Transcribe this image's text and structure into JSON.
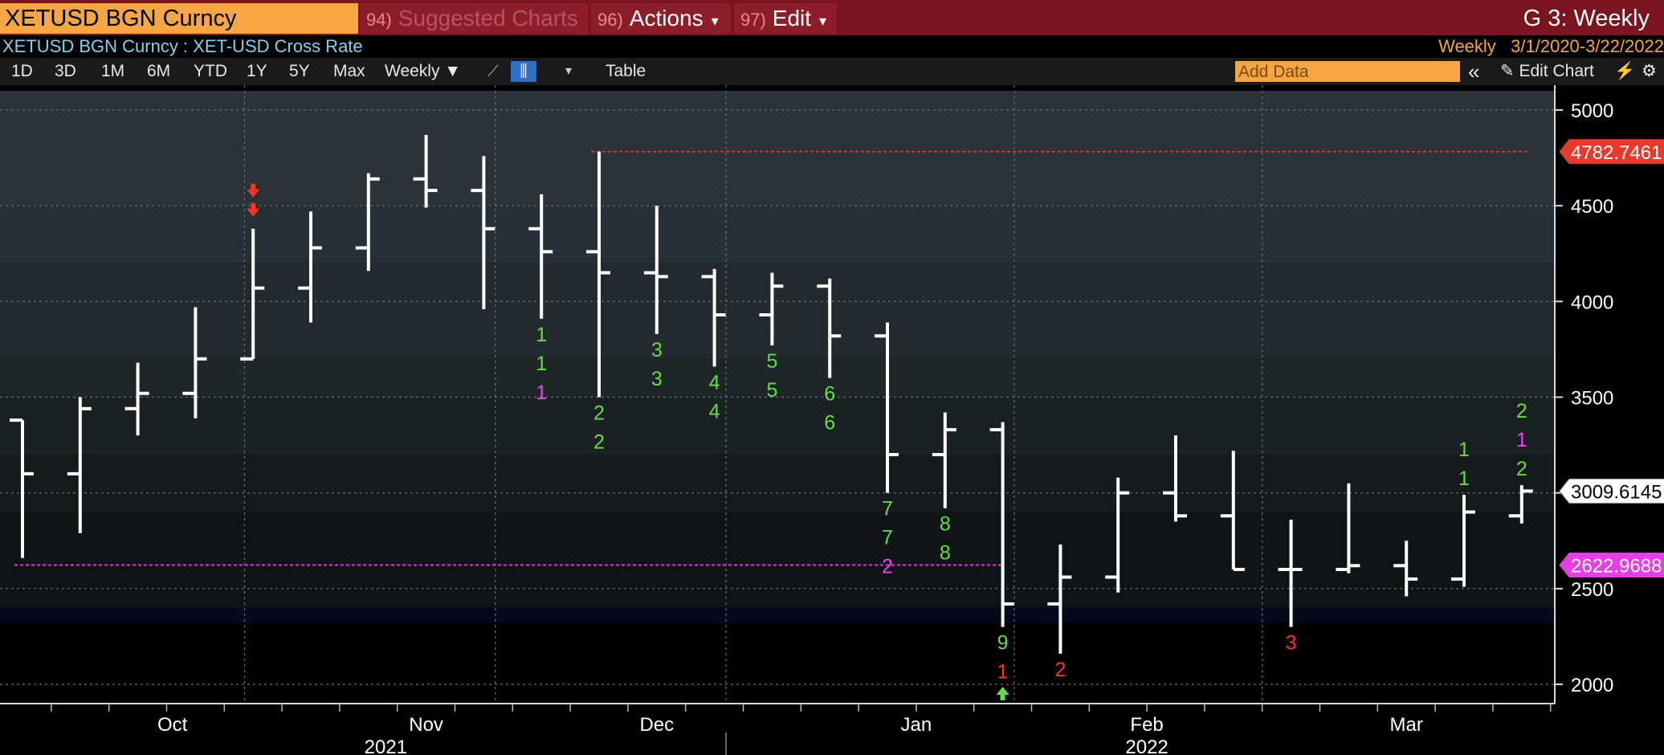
{
  "header": {
    "ticker": "XETUSD BGN Curncy",
    "menus": [
      {
        "num": "94)",
        "label": "Suggested Charts"
      },
      {
        "num": "96)",
        "label": "Actions",
        "caret": "▾"
      },
      {
        "num": "97)",
        "label": "Edit",
        "caret": "▾"
      }
    ],
    "window_title": "G 3: Weekly",
    "subtitle": "XETUSD BGN Curncy : XET-USD Cross Rate",
    "period_label": "Weekly",
    "date_range": "3/1/2020-3/22/2022"
  },
  "toolbar": {
    "ranges": [
      "1D",
      "3D",
      "1M",
      "6M",
      "YTD",
      "1Y",
      "5Y",
      "Max"
    ],
    "frequency": "Weekly ▼",
    "table_label": "Table",
    "add_data_placeholder": "Add Data",
    "double_chevron": "«",
    "edit_chart_label": "Edit Chart",
    "pencil_icon": "✎",
    "line_icon": "⟋",
    "bar_icon": "⫼",
    "dropdown_caret": "▾",
    "wand_icon": "⚡",
    "gear_icon": "⚙"
  },
  "colors": {
    "bars": "#ffffff",
    "count_green": "#66dd44",
    "count_red": "#ff3322",
    "count_magenta": "#ee44ee",
    "high_line": "#dd3333",
    "low_line": "#dd33dd",
    "accent_orange": "#f5a643",
    "menu_red": "#7a1520"
  },
  "chart_data": {
    "type": "ohlc",
    "frequency": "Weekly",
    "ylim": [
      1900,
      5100
    ],
    "y_ticks": [
      2000,
      2500,
      3000,
      3500,
      4000,
      4500,
      5000
    ],
    "month_labels": [
      {
        "label": "Oct",
        "bar": 2.6
      },
      {
        "label": "Nov",
        "bar": 7.0
      },
      {
        "label": "Dec",
        "bar": 11.0
      },
      {
        "label": "Jan",
        "bar": 15.5
      },
      {
        "label": "Feb",
        "bar": 19.5
      },
      {
        "label": "Mar",
        "bar": 24.0
      }
    ],
    "year_labels": [
      {
        "label": "2021",
        "bar": 6.3
      },
      {
        "label": "2022",
        "bar": 19.5
      }
    ],
    "bars": [
      {
        "o": 3380,
        "h": 3380,
        "l": 2660,
        "c": 3100
      },
      {
        "o": 3100,
        "h": 3500,
        "l": 2790,
        "c": 3440
      },
      {
        "o": 3440,
        "h": 3680,
        "l": 3300,
        "c": 3520
      },
      {
        "o": 3520,
        "h": 3970,
        "l": 3390,
        "c": 3700
      },
      {
        "o": 3700,
        "h": 4380,
        "l": 3700,
        "c": 4070
      },
      {
        "o": 4070,
        "h": 4470,
        "l": 3890,
        "c": 4280
      },
      {
        "o": 4280,
        "h": 4670,
        "l": 4160,
        "c": 4640
      },
      {
        "o": 4640,
        "h": 4870,
        "l": 4490,
        "c": 4580
      },
      {
        "o": 4580,
        "h": 4760,
        "l": 3960,
        "c": 4380
      },
      {
        "o": 4380,
        "h": 4560,
        "l": 3910,
        "c": 4260
      },
      {
        "o": 4260,
        "h": 4782.7461,
        "l": 3500,
        "c": 4150
      },
      {
        "o": 4150,
        "h": 4500,
        "l": 3830,
        "c": 4130
      },
      {
        "o": 4130,
        "h": 4170,
        "l": 3660,
        "c": 3930
      },
      {
        "o": 3930,
        "h": 4150,
        "l": 3770,
        "c": 4080
      },
      {
        "o": 4080,
        "h": 4120,
        "l": 3600,
        "c": 3820
      },
      {
        "o": 3820,
        "h": 3890,
        "l": 3000,
        "c": 3200
      },
      {
        "o": 3200,
        "h": 3420,
        "l": 2920,
        "c": 3330
      },
      {
        "o": 3330,
        "h": 3370,
        "l": 2300,
        "c": 2420
      },
      {
        "o": 2420,
        "h": 2730,
        "l": 2160,
        "c": 2560
      },
      {
        "o": 2560,
        "h": 3080,
        "l": 2480,
        "c": 3000
      },
      {
        "o": 3000,
        "h": 3300,
        "l": 2850,
        "c": 2880
      },
      {
        "o": 2880,
        "h": 3220,
        "l": 2600,
        "c": 2600
      },
      {
        "o": 2600,
        "h": 2860,
        "l": 2300,
        "c": 2600
      },
      {
        "o": 2600,
        "h": 3050,
        "l": 2580,
        "c": 2620
      },
      {
        "o": 2620,
        "h": 2750,
        "l": 2460,
        "c": 2550
      },
      {
        "o": 2550,
        "h": 2990,
        "l": 2510,
        "c": 2900
      },
      {
        "o": 2880,
        "h": 3040,
        "l": 2840,
        "c": 3009.6145
      }
    ],
    "sequential_counts": [
      {
        "bar": 9,
        "labels": [
          {
            "t": "1",
            "c": "green"
          },
          {
            "t": "1",
            "c": "green"
          },
          {
            "t": "1",
            "c": "magenta"
          }
        ]
      },
      {
        "bar": 10,
        "labels": [
          {
            "t": "2",
            "c": "green"
          },
          {
            "t": "2",
            "c": "green"
          }
        ]
      },
      {
        "bar": 11,
        "labels": [
          {
            "t": "3",
            "c": "green"
          },
          {
            "t": "3",
            "c": "green"
          }
        ]
      },
      {
        "bar": 12,
        "labels": [
          {
            "t": "4",
            "c": "green"
          },
          {
            "t": "4",
            "c": "green"
          }
        ]
      },
      {
        "bar": 13,
        "labels": [
          {
            "t": "5",
            "c": "green"
          },
          {
            "t": "5",
            "c": "green"
          }
        ]
      },
      {
        "bar": 14,
        "labels": [
          {
            "t": "6",
            "c": "green"
          },
          {
            "t": "6",
            "c": "green"
          }
        ]
      },
      {
        "bar": 15,
        "labels": [
          {
            "t": "7",
            "c": "green"
          },
          {
            "t": "7",
            "c": "green"
          },
          {
            "t": "2",
            "c": "magenta"
          }
        ]
      },
      {
        "bar": 16,
        "labels": [
          {
            "t": "8",
            "c": "green"
          },
          {
            "t": "8",
            "c": "green"
          }
        ]
      },
      {
        "bar": 17,
        "labels": [
          {
            "t": "9",
            "c": "green"
          },
          {
            "t": "1",
            "c": "red"
          }
        ]
      },
      {
        "bar": 18,
        "labels": [
          {
            "t": "2",
            "c": "red"
          }
        ]
      },
      {
        "bar": 22,
        "labels": [
          {
            "t": "3",
            "c": "red"
          }
        ]
      }
    ],
    "upper_counts": [
      {
        "bar": 25,
        "labels": [
          {
            "t": "1",
            "c": "green"
          },
          {
            "t": "1",
            "c": "green"
          }
        ]
      },
      {
        "bar": 26,
        "labels": [
          {
            "t": "2",
            "c": "green"
          },
          {
            "t": "1",
            "c": "magenta"
          },
          {
            "t": "2",
            "c": "green"
          }
        ]
      }
    ],
    "sell_arrow_bar": 4,
    "buy_arrow_bar": 17,
    "reference_lines": [
      {
        "label": "4782.7461",
        "value": 4782.7461,
        "color": "high_line",
        "from_bar": 10
      },
      {
        "label": "2622.9688",
        "value": 2622.9688,
        "color": "low_line",
        "from_bar": 0,
        "to_bar": 17
      }
    ],
    "last_price_label": "3009.6145",
    "last_price": 3009.6145
  }
}
